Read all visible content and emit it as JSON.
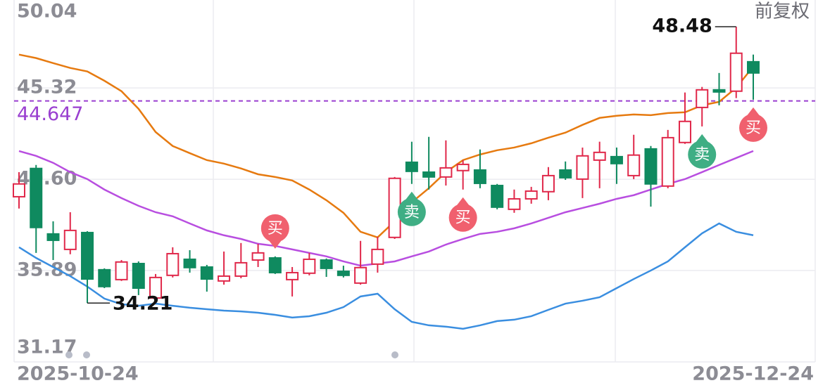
{
  "chart_data": {
    "type": "candlestick",
    "adjustment": "前复权",
    "categories": [
      "2025-10-24",
      null,
      null,
      null,
      null,
      null,
      null,
      null,
      null,
      null,
      null,
      null,
      null,
      null,
      null,
      null,
      null,
      null,
      null,
      null,
      null,
      null,
      null,
      null,
      null,
      null,
      null,
      null,
      null,
      null,
      null,
      null,
      null,
      null,
      null,
      null,
      null,
      null,
      null,
      null,
      null,
      null,
      null,
      "2025-12-24"
    ],
    "open": [
      39.7,
      41.16,
      37.78,
      36.98,
      37.85,
      35.93,
      35.42,
      36.25,
      34.47,
      35.64,
      36.47,
      36.07,
      35.35,
      35.6,
      36.43,
      36.54,
      35.42,
      35.75,
      36.43,
      35.85,
      35.24,
      36.22,
      37.6,
      41.48,
      40.97,
      40.72,
      41.05,
      41.08,
      40.28,
      39.05,
      39.59,
      39.96,
      41.08,
      40.61,
      41.59,
      41.77,
      40.79,
      42.17,
      40.25,
      42.5,
      44.31,
      45.22,
      45.15,
      46.67
    ],
    "high": [
      40.97,
      41.34,
      38.43,
      38.9,
      37.92,
      36.0,
      36.43,
      36.36,
      35.71,
      37.09,
      36.94,
      36.18,
      36.87,
      37.31,
      37.27,
      36.62,
      36.07,
      36.8,
      36.51,
      36.14,
      37.42,
      37.63,
      40.72,
      42.54,
      42.79,
      42.61,
      41.59,
      42.14,
      40.36,
      40.07,
      40.21,
      41.23,
      41.52,
      42.24,
      42.54,
      42.24,
      42.9,
      42.32,
      43.15,
      45.08,
      45.37,
      46.09,
      48.48,
      47.04
    ],
    "low": [
      39.09,
      36.8,
      36.43,
      36.73,
      34.21,
      34.98,
      35.35,
      34.62,
      34.25,
      35.53,
      35.78,
      34.8,
      35.16,
      35.49,
      36.07,
      35.71,
      34.55,
      35.64,
      35.56,
      35.53,
      35.16,
      35.78,
      37.52,
      40.36,
      40.07,
      40.28,
      40.07,
      40.14,
      39.05,
      38.87,
      39.34,
      39.52,
      40.57,
      39.63,
      40.14,
      40.36,
      40.61,
      39.19,
      40.14,
      42.43,
      43.33,
      44.42,
      44.79,
      44.71
    ],
    "close": [
      40.36,
      38.11,
      37.45,
      37.96,
      35.45,
      35.06,
      36.33,
      34.98,
      35.53,
      36.76,
      36.04,
      35.45,
      35.6,
      36.29,
      36.8,
      35.78,
      35.78,
      36.47,
      36.0,
      35.64,
      36.04,
      36.98,
      40.65,
      41.01,
      40.72,
      41.19,
      41.37,
      40.39,
      39.16,
      39.59,
      39.99,
      40.79,
      40.68,
      41.81,
      41.99,
      41.41,
      41.85,
      40.36,
      42.75,
      43.59,
      45.22,
      45.11,
      47.11,
      46.09
    ],
    "up_color": "#e0284a",
    "down_color": "#0f8a5f",
    "bands": {
      "upper": {
        "color": "#e67a10",
        "values": [
          47.04,
          46.86,
          46.6,
          46.35,
          46.17,
          45.69,
          45.15,
          44.24,
          43.04,
          42.32,
          41.95,
          41.59,
          41.41,
          41.16,
          40.86,
          40.72,
          40.54,
          40.07,
          39.52,
          38.87,
          37.89,
          37.6,
          38.43,
          39.41,
          40.14,
          40.97,
          41.59,
          41.88,
          42.1,
          42.24,
          42.46,
          42.75,
          43.01,
          43.41,
          43.77,
          43.88,
          43.95,
          43.91,
          44.02,
          44.06,
          44.42,
          44.6,
          45.33,
          46.42
        ]
      },
      "middle": {
        "color": "#b84ee0",
        "values": [
          42.06,
          41.81,
          41.45,
          40.97,
          40.61,
          40.07,
          39.63,
          39.23,
          38.9,
          38.69,
          38.32,
          37.96,
          37.71,
          37.52,
          37.27,
          37.16,
          36.98,
          36.8,
          36.62,
          36.36,
          36.14,
          36.25,
          36.36,
          36.62,
          36.87,
          37.23,
          37.52,
          37.78,
          37.89,
          38.07,
          38.32,
          38.61,
          38.9,
          39.12,
          39.34,
          39.59,
          39.78,
          40.07,
          40.36,
          40.61,
          40.97,
          41.34,
          41.7,
          42.06
        ]
      },
      "lower": {
        "color": "#3a8ee0",
        "values": [
          37.09,
          36.54,
          36.07,
          35.6,
          35.06,
          34.44,
          34.15,
          34.07,
          34.18,
          34.07,
          33.97,
          33.89,
          33.82,
          33.78,
          33.71,
          33.6,
          33.46,
          33.53,
          33.71,
          34.0,
          34.55,
          34.69,
          33.89,
          33.24,
          33.06,
          32.99,
          32.88,
          33.06,
          33.28,
          33.35,
          33.53,
          33.86,
          34.18,
          34.33,
          34.51,
          34.98,
          35.45,
          35.89,
          36.36,
          37.09,
          37.81,
          38.32,
          37.89,
          37.71
        ]
      }
    },
    "price_line": {
      "value": 44.647,
      "color": "#9a3fd0"
    },
    "signals": [
      {
        "index": 15,
        "label": "买",
        "position": "above"
      },
      {
        "index": 23,
        "label": "卖",
        "position": "below"
      },
      {
        "index": 26,
        "label": "买",
        "position": "below"
      },
      {
        "index": 40,
        "label": "卖",
        "position": "below"
      },
      {
        "index": 43,
        "label": "买",
        "position": "below"
      }
    ],
    "ylim": [
      31.17,
      50.04
    ],
    "yticks": [
      31.17,
      35.89,
      {
        "value": 40.6,
        "label": "40.60"
      },
      45.32,
      50.04
    ],
    "grid": true
  }
}
